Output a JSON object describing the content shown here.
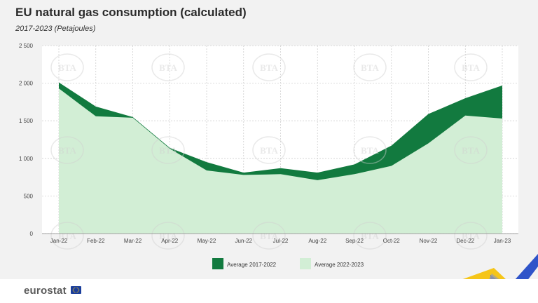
{
  "header": {
    "title": "EU natural gas consumption (calculated)",
    "subtitle": "2017-2023 (Petajoules)"
  },
  "watermark": "BTA",
  "footer": {
    "brand": "eurostat",
    "flag_icon": "eu-flag-icon"
  },
  "colors": {
    "dark_green": "#127a3f",
    "light_green": "#d2eed5",
    "grid": "#cfcfcf",
    "plot_bg": "#ffffff",
    "deco_yellow": "#f5c518",
    "deco_blue": "#2f54c9"
  },
  "chart_data": {
    "type": "area",
    "categories": [
      "Jan-22",
      "Feb-22",
      "Mar-22",
      "Apr-22",
      "May-22",
      "Jun-22",
      "Jul-22",
      "Aug-22",
      "Sep-22",
      "Oct-22",
      "Nov-22",
      "Dec-22",
      "Jan-23"
    ],
    "series": [
      {
        "name": "Average 2017-2022",
        "values": [
          2010,
          1690,
          1550,
          1140,
          950,
          810,
          870,
          810,
          920,
          1170,
          1590,
          1800,
          1970
        ]
      },
      {
        "name": "Average 2022-2023",
        "values": [
          1930,
          1560,
          1540,
          1130,
          840,
          780,
          790,
          710,
          790,
          900,
          1200,
          1570,
          1530
        ]
      }
    ],
    "yticks": [
      "0",
      "500",
      "1 000",
      "1 500",
      "2 000",
      "2 500"
    ],
    "ylim": [
      0,
      2500
    ],
    "grid": true,
    "legend_position": "bottom"
  }
}
